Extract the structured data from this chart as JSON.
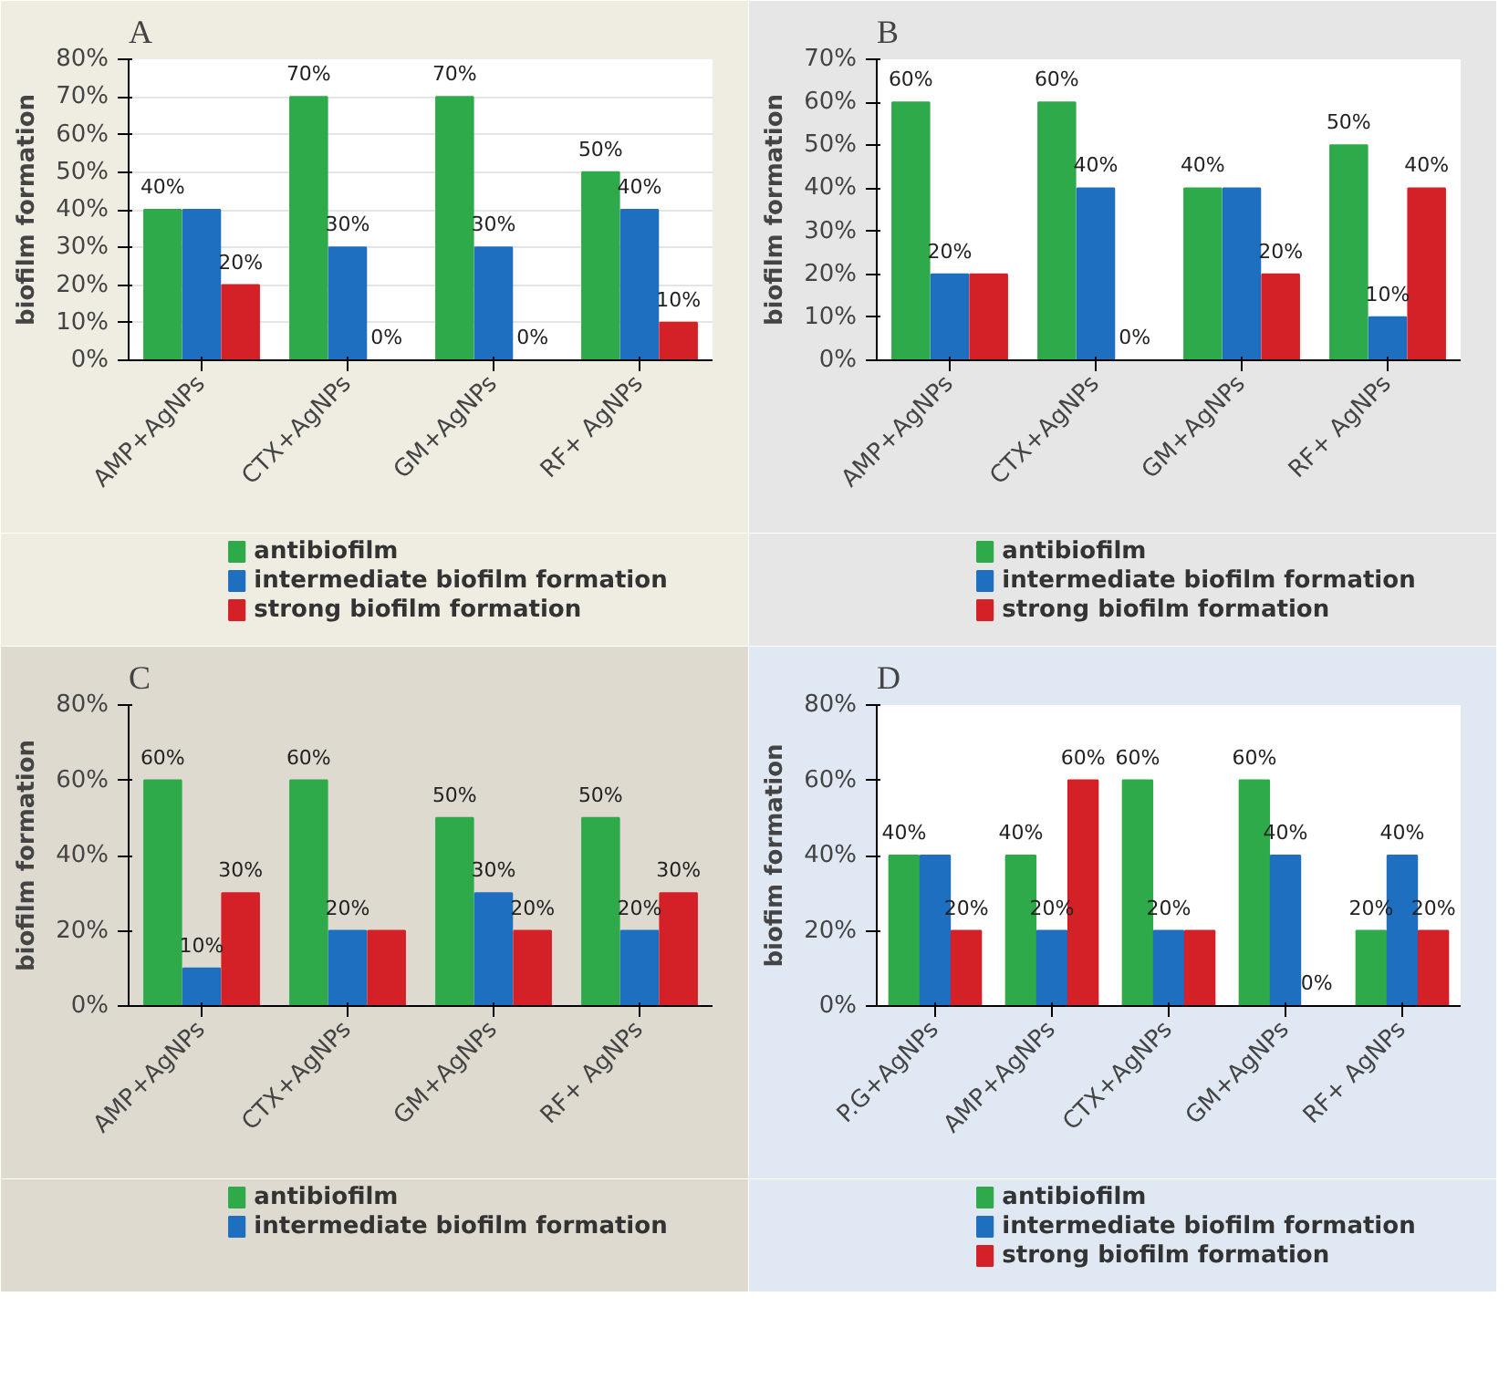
{
  "chart_data": [
    {
      "type": "bar",
      "title": "A",
      "ylabel": "biofilm formation",
      "categories": [
        "AMP+AgNPs",
        "CTX+AgNPs",
        "GM+AgNPs",
        "RF+ AgNPs"
      ],
      "ylim": [
        0,
        80
      ],
      "yticks": [
        {
          "value": 0,
          "label": "0%"
        },
        {
          "value": 10,
          "label": "10%"
        },
        {
          "value": 20,
          "label": "20%"
        },
        {
          "value": 30,
          "label": "30%"
        },
        {
          "value": 40,
          "label": "40%"
        },
        {
          "value": 50,
          "label": "50%"
        },
        {
          "value": 60,
          "label": "60%"
        },
        {
          "value": 70,
          "label": "70%"
        },
        {
          "value": 80,
          "label": "80%"
        }
      ],
      "grid": "y",
      "legend": "bottom",
      "series": [
        {
          "name": "antibiofilm",
          "color": "#2eaa4a",
          "values": [
            40,
            70,
            70,
            50
          ],
          "value_labels": [
            "40%",
            "70%",
            "70%",
            "50%"
          ]
        },
        {
          "name": "intermediate biofilm formation",
          "color": "#1f6fc0",
          "values": [
            40,
            30,
            30,
            40
          ],
          "value_labels": [
            null,
            "30%",
            "30%",
            "40%"
          ]
        },
        {
          "name": "strong biofilm formation",
          "color": "#d42027",
          "values": [
            20,
            0,
            0,
            10
          ],
          "value_labels": [
            "20%",
            "0%",
            "0%",
            "10%"
          ]
        }
      ]
    },
    {
      "type": "bar",
      "title": "B",
      "ylabel": "biofilm formation",
      "categories": [
        "AMP+AgNPs",
        "CTX+AgNPs",
        "GM+AgNPs",
        "RF+ AgNPs"
      ],
      "ylim": [
        0,
        70
      ],
      "yticks": [
        {
          "value": 0,
          "label": "0%"
        },
        {
          "value": 10,
          "label": "10%"
        },
        {
          "value": 20,
          "label": "20%"
        },
        {
          "value": 30,
          "label": "30%"
        },
        {
          "value": 40,
          "label": "40%"
        },
        {
          "value": 50,
          "label": "50%"
        },
        {
          "value": 60,
          "label": "60%"
        },
        {
          "value": 70,
          "label": "70%"
        }
      ],
      "legend": "bottom",
      "series": [
        {
          "name": "antibiofilm",
          "color": "#2eaa4a",
          "values": [
            60,
            60,
            40,
            50
          ],
          "value_labels": [
            "60%",
            "60%",
            "40%",
            "50%"
          ]
        },
        {
          "name": "intermediate biofilm formation",
          "color": "#1f6fc0",
          "values": [
            20,
            40,
            40,
            10
          ],
          "value_labels": [
            "20%",
            "40%",
            null,
            "10%"
          ]
        },
        {
          "name": "strong biofilm formation",
          "color": "#d42027",
          "values": [
            20,
            0,
            20,
            40
          ],
          "value_labels": [
            null,
            "0%",
            "20%",
            "40%"
          ]
        }
      ]
    },
    {
      "type": "bar",
      "title": "C",
      "ylabel": "biofilm formation",
      "categories": [
        "AMP+AgNPs",
        "CTX+AgNPs",
        "GM+AgNPs",
        "RF+ AgNPs"
      ],
      "ylim": [
        0,
        80
      ],
      "yticks": [
        {
          "value": 0,
          "label": "0%"
        },
        {
          "value": 20,
          "label": "20%"
        },
        {
          "value": 40,
          "label": "40%"
        },
        {
          "value": 60,
          "label": "60%"
        },
        {
          "value": 80,
          "label": "80%"
        }
      ],
      "legend": "bottom",
      "series": [
        {
          "name": "antibiofilm",
          "color": "#2eaa4a",
          "values": [
            60,
            60,
            50,
            50
          ],
          "value_labels": [
            "60%",
            "60%",
            "50%",
            "50%"
          ]
        },
        {
          "name": "intermediate biofilm formation",
          "color": "#1f6fc0",
          "values": [
            10,
            20,
            30,
            20
          ],
          "value_labels": [
            "10%",
            "20%",
            "30%",
            "20%"
          ]
        },
        {
          "color": "#d42027",
          "values": [
            30,
            20,
            20,
            30
          ],
          "value_labels": [
            "30%",
            null,
            "20%",
            "30%"
          ]
        }
      ]
    },
    {
      "type": "bar",
      "title": "D",
      "ylabel": "biofim formation",
      "categories": [
        "P.G+AgNPs",
        "AMP+AgNPs",
        "CTX+AgNPs",
        "GM+AgNPs",
        "RF+ AgNPs"
      ],
      "ylim": [
        0,
        80
      ],
      "yticks": [
        {
          "value": 0,
          "label": "0%"
        },
        {
          "value": 20,
          "label": "20%"
        },
        {
          "value": 40,
          "label": "40%"
        },
        {
          "value": 60,
          "label": "60%"
        },
        {
          "value": 80,
          "label": "80%"
        }
      ],
      "legend": "bottom",
      "series": [
        {
          "name": "antibiofilm",
          "color": "#2eaa4a",
          "values": [
            40,
            40,
            60,
            60,
            20
          ],
          "value_labels": [
            "40%",
            "40%",
            "60%",
            "60%",
            "20%"
          ]
        },
        {
          "name": "intermediate biofilm formation",
          "color": "#1f6fc0",
          "values": [
            40,
            20,
            20,
            40,
            40
          ],
          "value_labels": [
            null,
            "20%",
            "20%",
            "40%",
            "40%"
          ]
        },
        {
          "name": "strong biofilm formation",
          "color": "#d42027",
          "values": [
            20,
            60,
            20,
            0,
            20
          ],
          "value_labels": [
            "20%",
            "60%",
            null,
            "0%",
            "20%"
          ]
        }
      ]
    }
  ]
}
